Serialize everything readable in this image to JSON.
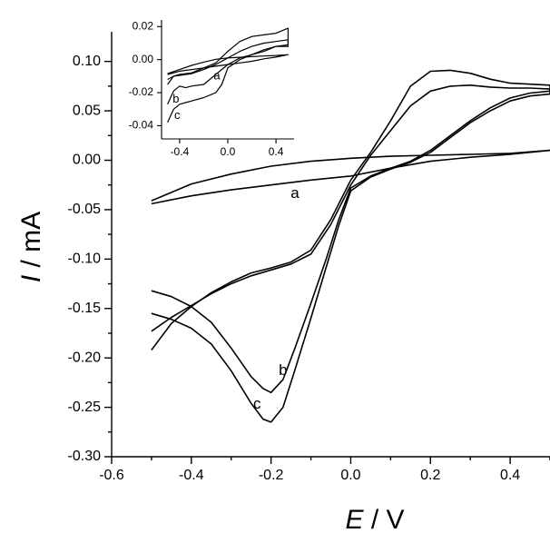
{
  "chart_data": [
    {
      "type": "line",
      "role": "main",
      "xlabel": {
        "symbol": "E",
        "unit": " / V"
      },
      "ylabel": {
        "symbol": "I",
        "unit": " / mA"
      },
      "xlim": [
        -0.6,
        0.5
      ],
      "ylim": [
        -0.3,
        0.13
      ],
      "xticks": [
        -0.6,
        -0.4,
        -0.2,
        0.0,
        0.2,
        0.4
      ],
      "xtick_labels": [
        "-0.6",
        "-0.4",
        "-0.2",
        "0.0",
        "0.2",
        "0.4"
      ],
      "yticks": [
        0.1,
        0.05,
        0.0,
        -0.05,
        -0.1,
        -0.15,
        -0.2,
        -0.25,
        -0.3
      ],
      "ytick_labels": [
        "0.10",
        "0.05",
        "0.00",
        "-0.05",
        "-0.10",
        "-0.15",
        "-0.20",
        "-0.25",
        "-0.30"
      ],
      "grid": false,
      "series": [
        {
          "label": "a",
          "label_at": [
            -0.14,
            -0.034
          ],
          "x": [
            -0.5,
            -0.4,
            -0.3,
            -0.2,
            -0.1,
            0.0,
            0.1,
            0.2,
            0.3,
            0.4,
            0.5,
            0.4,
            0.3,
            0.2,
            0.1,
            0.0,
            -0.1,
            -0.2,
            -0.3,
            -0.4,
            -0.5
          ],
          "y": [
            -0.044,
            -0.036,
            -0.03,
            -0.025,
            -0.02,
            -0.016,
            -0.008,
            -0.001,
            0.003,
            0.006,
            0.01,
            0.007,
            0.006,
            0.005,
            0.004,
            0.002,
            -0.001,
            -0.006,
            -0.014,
            -0.024,
            -0.041
          ]
        },
        {
          "label": "b",
          "label_at": [
            -0.17,
            -0.213
          ],
          "x": [
            -0.5,
            -0.45,
            -0.4,
            -0.35,
            -0.3,
            -0.25,
            -0.22,
            -0.2,
            -0.17,
            -0.14,
            -0.1,
            -0.06,
            -0.03,
            0.0,
            0.05,
            0.1,
            0.15,
            0.2,
            0.25,
            0.3,
            0.35,
            0.4,
            0.45,
            0.5,
            0.5,
            0.45,
            0.4,
            0.35,
            0.3,
            0.25,
            0.2,
            0.15,
            0.1,
            0.05,
            0.0,
            -0.05,
            -0.1,
            -0.15,
            -0.2,
            -0.25,
            -0.3,
            -0.35,
            -0.4,
            -0.45,
            -0.5
          ],
          "y": [
            -0.132,
            -0.138,
            -0.148,
            -0.164,
            -0.19,
            -0.219,
            -0.231,
            -0.235,
            -0.222,
            -0.19,
            -0.145,
            -0.098,
            -0.06,
            -0.028,
            -0.016,
            -0.008,
            -0.001,
            0.01,
            0.025,
            0.04,
            0.053,
            0.063,
            0.068,
            0.07,
            0.072,
            0.073,
            0.073,
            0.074,
            0.076,
            0.075,
            0.07,
            0.055,
            0.03,
            0.005,
            -0.025,
            -0.065,
            -0.095,
            -0.105,
            -0.111,
            -0.117,
            -0.125,
            -0.135,
            -0.147,
            -0.159,
            -0.173
          ]
        },
        {
          "label": "c",
          "label_at": [
            -0.235,
            -0.247
          ],
          "x": [
            -0.5,
            -0.45,
            -0.4,
            -0.35,
            -0.3,
            -0.25,
            -0.22,
            -0.2,
            -0.17,
            -0.14,
            -0.1,
            -0.06,
            -0.03,
            0.0,
            0.05,
            0.1,
            0.15,
            0.2,
            0.25,
            0.3,
            0.35,
            0.4,
            0.45,
            0.5,
            0.5,
            0.45,
            0.4,
            0.35,
            0.3,
            0.25,
            0.2,
            0.15,
            0.1,
            0.05,
            0.0,
            -0.05,
            -0.1,
            -0.15,
            -0.2,
            -0.25,
            -0.3,
            -0.35,
            -0.4,
            -0.45,
            -0.5
          ],
          "y": [
            -0.155,
            -0.161,
            -0.17,
            -0.186,
            -0.213,
            -0.246,
            -0.262,
            -0.265,
            -0.25,
            -0.212,
            -0.16,
            -0.106,
            -0.066,
            -0.031,
            -0.017,
            -0.009,
            -0.002,
            0.008,
            0.023,
            0.038,
            0.05,
            0.06,
            0.065,
            0.067,
            0.076,
            0.077,
            0.078,
            0.082,
            0.088,
            0.091,
            0.09,
            0.075,
            0.04,
            0.008,
            -0.02,
            -0.06,
            -0.091,
            -0.103,
            -0.109,
            -0.114,
            -0.123,
            -0.134,
            -0.148,
            -0.165,
            -0.192
          ]
        }
      ]
    },
    {
      "type": "line",
      "role": "inset",
      "xlim": [
        -0.55,
        0.55
      ],
      "ylim": [
        -0.048,
        0.024
      ],
      "xticks": [
        -0.4,
        0.0,
        0.4
      ],
      "xtick_labels": [
        "-0.4",
        "0.0",
        "0.4"
      ],
      "yticks": [
        0.02,
        0.0,
        -0.02,
        -0.04
      ],
      "ytick_labels": [
        "0.02",
        "0.00",
        "-0.02",
        "-0.04"
      ],
      "grid": false,
      "series": [
        {
          "label": "a",
          "label_at": [
            -0.09,
            -0.01
          ],
          "x": [
            -0.5,
            -0.4,
            -0.3,
            -0.2,
            -0.1,
            0.0,
            0.1,
            0.2,
            0.3,
            0.4,
            0.5,
            0.4,
            0.3,
            0.2,
            0.1,
            0.0,
            -0.1,
            -0.2,
            -0.3,
            -0.4,
            -0.5
          ],
          "y": [
            -0.009,
            -0.007,
            -0.006,
            -0.005,
            -0.004,
            -0.003,
            -0.002,
            -0.001,
            0.0005,
            0.0015,
            0.003,
            0.0025,
            0.0022,
            0.0018,
            0.0014,
            0.001,
            0.0002,
            -0.0015,
            -0.0035,
            -0.006,
            -0.0085
          ]
        },
        {
          "label": "b",
          "label_at": [
            -0.43,
            -0.024
          ],
          "x": [
            -0.5,
            -0.45,
            -0.4,
            -0.35,
            -0.3,
            -0.2,
            -0.1,
            0.0,
            0.1,
            0.2,
            0.3,
            0.4,
            0.5,
            0.5,
            0.4,
            0.3,
            0.2,
            0.1,
            0.0,
            -0.1,
            -0.2,
            -0.3,
            -0.4,
            -0.45,
            -0.5
          ],
          "y": [
            -0.027,
            -0.019,
            -0.016,
            -0.017,
            -0.016,
            -0.015,
            -0.009,
            -0.003,
            0.001,
            0.003,
            0.005,
            0.008,
            0.008,
            0.012,
            0.011,
            0.01,
            0.008,
            0.005,
            0.001,
            -0.003,
            -0.006,
            -0.0085,
            -0.0095,
            -0.01,
            -0.012
          ]
        },
        {
          "label": "c",
          "label_at": [
            -0.42,
            -0.034
          ],
          "x": [
            -0.5,
            -0.45,
            -0.4,
            -0.35,
            -0.3,
            -0.2,
            -0.1,
            -0.05,
            0.0,
            0.1,
            0.2,
            0.3,
            0.4,
            0.5,
            0.5,
            0.4,
            0.3,
            0.2,
            0.1,
            0.0,
            -0.1,
            -0.2,
            -0.3,
            -0.4,
            -0.45,
            -0.5
          ],
          "y": [
            -0.038,
            -0.03,
            -0.027,
            -0.026,
            -0.025,
            -0.023,
            -0.02,
            -0.015,
            -0.005,
            0.0,
            0.003,
            0.006,
            0.008,
            0.009,
            0.019,
            0.016,
            0.015,
            0.014,
            0.011,
            0.005,
            -0.002,
            -0.005,
            -0.008,
            -0.009,
            -0.01,
            -0.015
          ]
        }
      ]
    }
  ]
}
